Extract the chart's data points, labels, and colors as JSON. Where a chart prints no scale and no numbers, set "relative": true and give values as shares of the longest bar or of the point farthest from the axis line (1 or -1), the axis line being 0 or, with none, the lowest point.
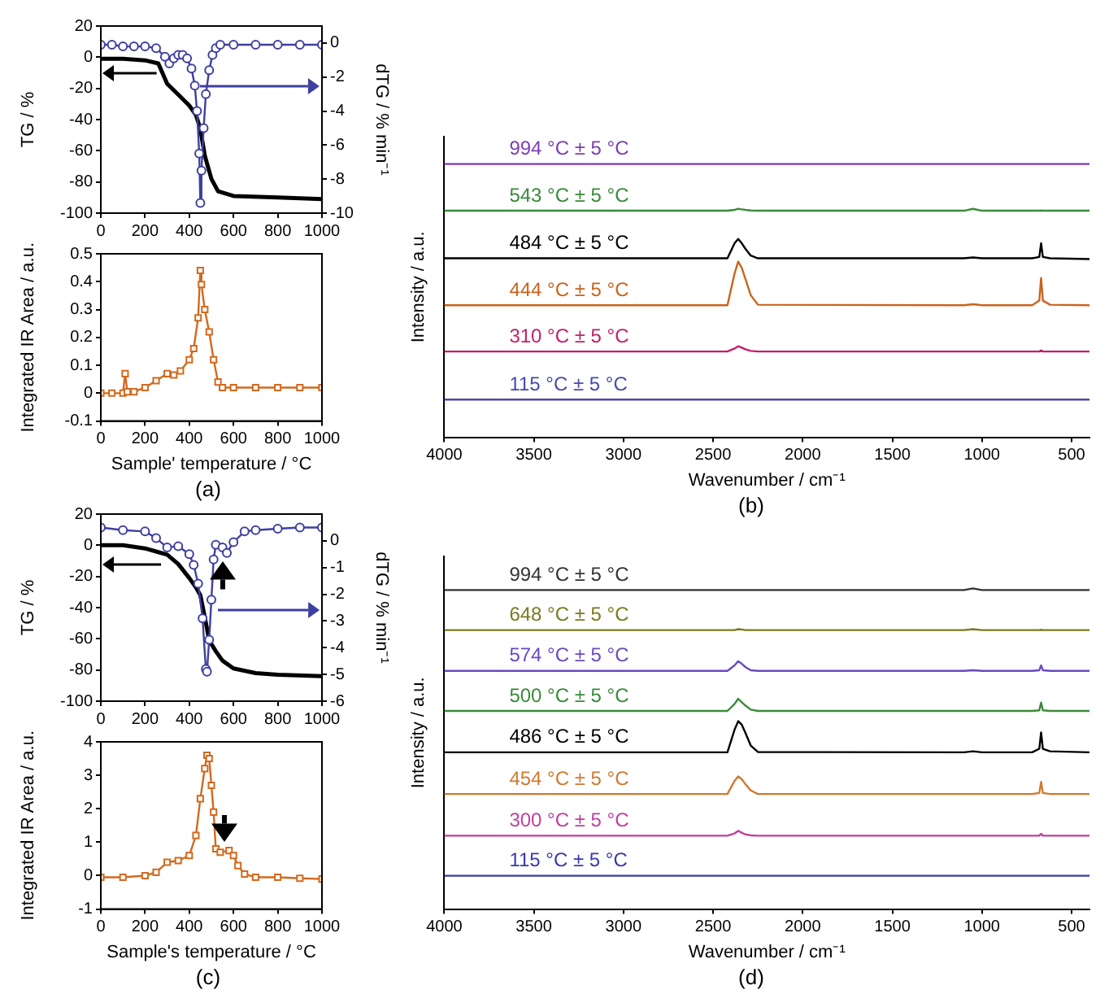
{
  "chart_data": [
    {
      "type": "line",
      "ylabel": "TG / %",
      "y2label": "dTG / % min⁻¹",
      "xlim": [
        0,
        1000
      ],
      "xticks": [
        0,
        200,
        400,
        600,
        800,
        1000
      ],
      "ylim": [
        -100,
        20
      ],
      "yticks": [
        -100,
        -80,
        -60,
        -40,
        -20,
        0,
        20
      ],
      "y2lim": [
        -10,
        1
      ],
      "y2ticks": [
        -10,
        -8,
        -6,
        -4,
        -2,
        0
      ],
      "series": [
        {
          "color": "#000000",
          "marker": "none",
          "x": [
            0,
            100,
            200,
            260,
            300,
            350,
            400,
            430,
            450,
            470,
            500,
            530,
            600,
            800,
            1000
          ],
          "values": [
            -1,
            -1,
            -2,
            -4,
            -17,
            -24,
            -31,
            -37,
            -46,
            -63,
            -78,
            -86,
            -89,
            -90,
            -91
          ]
        },
        {
          "color": "#3f3fa0",
          "marker": "circle",
          "axis": "y2",
          "x": [
            0,
            50,
            100,
            150,
            200,
            250,
            290,
            310,
            330,
            350,
            370,
            390,
            410,
            425,
            435,
            445,
            450,
            455,
            465,
            475,
            490,
            505,
            520,
            540,
            600,
            700,
            800,
            900,
            1000
          ],
          "values": [
            -0.1,
            -0.1,
            -0.2,
            -0.2,
            -0.2,
            -0.3,
            -0.8,
            -1.2,
            -0.9,
            -0.7,
            -0.7,
            -0.9,
            -1.5,
            -2.5,
            -4,
            -6.5,
            -9.4,
            -7.5,
            -5,
            -3,
            -1.6,
            -0.7,
            -0.3,
            -0.1,
            -0.1,
            -0.1,
            -0.1,
            -0.1,
            -0.1
          ]
        }
      ]
    },
    {
      "type": "line",
      "xlabel": "Sample' temperature / °C",
      "ylabel": "Integrated IR Area / a.u.",
      "xlim": [
        0,
        1000
      ],
      "xticks": [
        0,
        200,
        400,
        600,
        800,
        1000
      ],
      "ylim": [
        -0.1,
        0.5
      ],
      "yticks": [
        -0.1,
        0,
        0.1,
        0.2,
        0.3,
        0.4,
        0.5
      ],
      "annotations": [
        "(a)"
      ],
      "series": [
        {
          "color": "#d2691e",
          "marker": "square",
          "x": [
            0,
            50,
            100,
            110,
            120,
            150,
            200,
            250,
            300,
            330,
            360,
            400,
            420,
            440,
            450,
            455,
            470,
            490,
            510,
            530,
            550,
            600,
            700,
            800,
            900,
            1000
          ],
          "values": [
            0,
            0,
            0,
            0.07,
            0.005,
            0.005,
            0.02,
            0.045,
            0.07,
            0.065,
            0.08,
            0.12,
            0.16,
            0.27,
            0.44,
            0.39,
            0.3,
            0.22,
            0.12,
            0.04,
            0.02,
            0.02,
            0.02,
            0.02,
            0.02,
            0.02
          ]
        }
      ]
    },
    {
      "type": "line",
      "relative": true,
      "xlabel": "Wavenumber / cm⁻¹",
      "ylabel": "Intensity / a.u.",
      "xlim": [
        4000,
        400
      ],
      "xticks": [
        4000,
        3500,
        3000,
        2500,
        2000,
        1500,
        1000,
        500
      ],
      "annotations": [
        "(b)"
      ],
      "x": [
        4000,
        2420,
        2380,
        2360,
        2340,
        2320,
        2290,
        2250,
        1100,
        1050,
        1000,
        720,
        680,
        670,
        660,
        620,
        400
      ],
      "series": [
        {
          "name": "994 °C ± 5 °C",
          "color": "#7a3fb0",
          "values": [
            1,
            1,
            1,
            1,
            1,
            1,
            1,
            1,
            1,
            1,
            1,
            1,
            1,
            1,
            1,
            1,
            1
          ]
        },
        {
          "name": "543 °C ± 5 °C",
          "color": "#3a8a3a",
          "values": [
            0.829,
            0.829,
            0.832,
            0.836,
            0.834,
            0.832,
            0.83,
            0.829,
            0.829,
            0.836,
            0.829,
            0.829,
            0.829,
            0.83,
            0.829,
            0.829,
            0.829
          ]
        },
        {
          "name": "484 °C ± 5 °C",
          "color": "#000000",
          "values": [
            0.655,
            0.655,
            0.71,
            0.726,
            0.71,
            0.69,
            0.665,
            0.655,
            0.655,
            0.658,
            0.655,
            0.655,
            0.66,
            0.71,
            0.66,
            0.655,
            0.652
          ]
        },
        {
          "name": "444 °C ± 5 °C",
          "color": "#c8641e",
          "values": [
            0.483,
            0.483,
            0.6,
            0.643,
            0.62,
            0.58,
            0.52,
            0.485,
            0.483,
            0.487,
            0.483,
            0.483,
            0.5,
            0.583,
            0.5,
            0.485,
            0.483
          ]
        },
        {
          "name": "310 °C ± 5 °C",
          "color": "#c0206a",
          "values": [
            0.314,
            0.314,
            0.325,
            0.333,
            0.328,
            0.322,
            0.316,
            0.314,
            0.314,
            0.314,
            0.314,
            0.314,
            0.314,
            0.318,
            0.314,
            0.314,
            0.314
          ]
        },
        {
          "name": "115 °C ± 5 °C",
          "color": "#4a4aa8",
          "values": [
            0.138,
            0.138,
            0.138,
            0.138,
            0.138,
            0.138,
            0.138,
            0.138,
            0.138,
            0.138,
            0.138,
            0.138,
            0.138,
            0.138,
            0.138,
            0.138,
            0.138
          ]
        }
      ]
    },
    {
      "type": "line",
      "ylabel": "TG / %",
      "y2label": "dTG / % min⁻¹",
      "xlim": [
        0,
        1000
      ],
      "xticks": [
        0,
        200,
        400,
        600,
        800,
        1000
      ],
      "ylim": [
        -100,
        20
      ],
      "yticks": [
        -100,
        -80,
        -60,
        -40,
        -20,
        0,
        20
      ],
      "y2lim": [
        -6,
        1
      ],
      "y2ticks": [
        -6,
        -5,
        -4,
        -3,
        -2,
        -1,
        0
      ],
      "series": [
        {
          "color": "#000000",
          "marker": "none",
          "x": [
            0,
            100,
            200,
            250,
            300,
            350,
            400,
            430,
            450,
            470,
            490,
            520,
            550,
            600,
            700,
            800,
            1000
          ],
          "values": [
            0,
            0,
            -2,
            -4,
            -6,
            -12,
            -21,
            -27,
            -32,
            -46,
            -61,
            -68,
            -74,
            -79,
            -82,
            -83,
            -84
          ]
        },
        {
          "color": "#3f3fa0",
          "marker": "circle",
          "axis": "y2",
          "x": [
            0,
            100,
            200,
            250,
            300,
            350,
            400,
            420,
            440,
            460,
            475,
            480,
            490,
            500,
            510,
            520,
            550,
            570,
            600,
            650,
            700,
            800,
            900,
            1000
          ],
          "values": [
            0.5,
            0.4,
            0.35,
            0.1,
            -0.25,
            -0.2,
            -0.5,
            -0.9,
            -1.6,
            -2.9,
            -4.8,
            -4.9,
            -3.7,
            -2.2,
            -0.7,
            -0.15,
            -0.25,
            -0.45,
            -0.05,
            0.35,
            0.4,
            0.45,
            0.5,
            0.5
          ]
        }
      ]
    },
    {
      "type": "line",
      "xlabel": "Sample's temperature / °C",
      "ylabel": "Integrated IR Area / a.u.",
      "xlim": [
        0,
        1000
      ],
      "xticks": [
        0,
        200,
        400,
        600,
        800,
        1000
      ],
      "ylim": [
        -1,
        4
      ],
      "yticks": [
        -1,
        0,
        1,
        2,
        3,
        4
      ],
      "annotations": [
        "(c)"
      ],
      "series": [
        {
          "color": "#d2691e",
          "marker": "square",
          "x": [
            0,
            100,
            200,
            250,
            300,
            350,
            400,
            430,
            450,
            470,
            480,
            490,
            500,
            510,
            520,
            540,
            580,
            600,
            620,
            650,
            700,
            800,
            900,
            1000
          ],
          "values": [
            -0.05,
            -0.05,
            0,
            0.1,
            0.4,
            0.45,
            0.6,
            1.2,
            2.3,
            3.2,
            3.6,
            3.5,
            2.7,
            1.9,
            0.8,
            0.7,
            0.75,
            0.6,
            0.3,
            0.05,
            -0.05,
            -0.05,
            -0.08,
            -0.1
          ]
        }
      ]
    },
    {
      "type": "line",
      "relative": true,
      "xlabel": "Wavenumber / cm⁻¹",
      "ylabel": "Intensity / a.u.",
      "xlim": [
        4000,
        400
      ],
      "xticks": [
        4000,
        3500,
        3000,
        2500,
        2000,
        1500,
        1000,
        500
      ],
      "annotations": [
        "(d)"
      ],
      "x": [
        4000,
        2420,
        2380,
        2360,
        2340,
        2320,
        2290,
        2250,
        1100,
        1050,
        1000,
        720,
        680,
        670,
        660,
        620,
        400
      ],
      "series": [
        {
          "name": "994 °C ± 5 °C",
          "color": "#333333",
          "values": [
            0.995,
            0.995,
            0.995,
            0.995,
            0.995,
            0.995,
            0.995,
            0.995,
            0.995,
            1,
            0.995,
            0.995,
            0.995,
            0.995,
            0.995,
            0.995,
            0.995
          ]
        },
        {
          "name": "648 °C ± 5 °C",
          "color": "#7a7a20",
          "values": [
            0.87,
            0.87,
            0.87,
            0.873,
            0.872,
            0.87,
            0.87,
            0.87,
            0.87,
            0.873,
            0.87,
            0.87,
            0.87,
            0.871,
            0.87,
            0.87,
            0.87
          ]
        },
        {
          "name": "574 °C ± 5 °C",
          "color": "#6a4ac0",
          "values": [
            0.743,
            0.743,
            0.76,
            0.773,
            0.765,
            0.755,
            0.745,
            0.743,
            0.743,
            0.745,
            0.743,
            0.743,
            0.745,
            0.76,
            0.745,
            0.743,
            0.743
          ]
        },
        {
          "name": "500 °C ± 5 °C",
          "color": "#3a8a3a",
          "values": [
            0.618,
            0.618,
            0.64,
            0.656,
            0.645,
            0.635,
            0.622,
            0.618,
            0.618,
            0.618,
            0.618,
            0.618,
            0.62,
            0.644,
            0.62,
            0.618,
            0.618
          ]
        },
        {
          "name": "486 °C ± 5 °C",
          "color": "#000000",
          "values": [
            0.489,
            0.489,
            0.56,
            0.586,
            0.575,
            0.55,
            0.51,
            0.49,
            0.489,
            0.492,
            0.489,
            0.489,
            0.5,
            0.551,
            0.5,
            0.492,
            0.489
          ]
        },
        {
          "name": "454 °C ± 5 °C",
          "color": "#d07a30",
          "values": [
            0.359,
            0.359,
            0.4,
            0.414,
            0.405,
            0.39,
            0.37,
            0.359,
            0.359,
            0.359,
            0.359,
            0.359,
            0.362,
            0.397,
            0.362,
            0.359,
            0.359
          ]
        },
        {
          "name": "300 °C ± 5 °C",
          "color": "#c040a0",
          "values": [
            0.229,
            0.229,
            0.236,
            0.244,
            0.238,
            0.233,
            0.23,
            0.229,
            0.229,
            0.229,
            0.229,
            0.229,
            0.229,
            0.235,
            0.229,
            0.229,
            0.229
          ]
        },
        {
          "name": "115 °C ± 5 °C",
          "color": "#3a3aa8",
          "values": [
            0.104,
            0.104,
            0.104,
            0.104,
            0.104,
            0.104,
            0.104,
            0.104,
            0.104,
            0.104,
            0.104,
            0.104,
            0.104,
            0.104,
            0.104,
            0.104,
            0.104
          ]
        }
      ]
    }
  ]
}
